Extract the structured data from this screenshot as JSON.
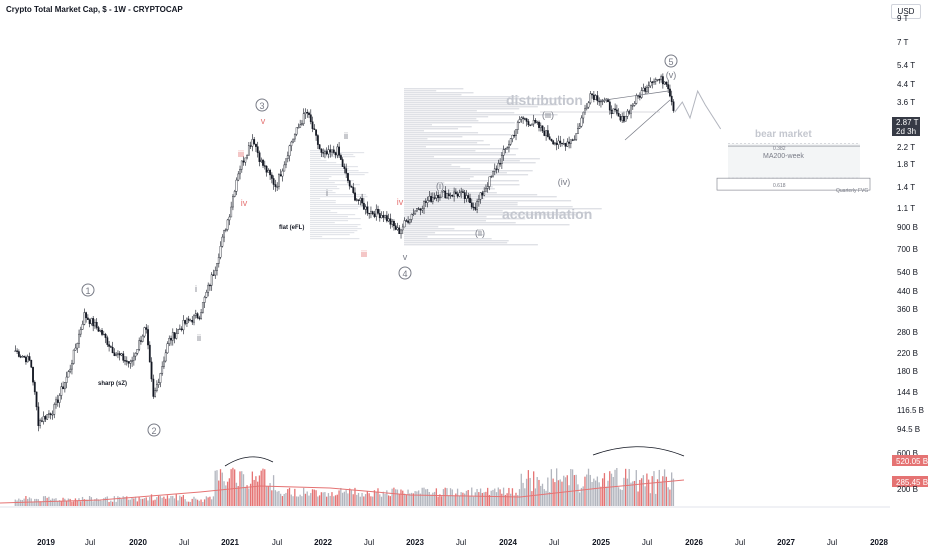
{
  "header": {
    "title": "Crypto Total Market Cap, $ - 1W - CRYPTOCAP",
    "currency": "USD"
  },
  "colors": {
    "up": "#ffffff",
    "down": "#131722",
    "wick": "#131722",
    "volume_up": "#b2b5be",
    "volume_down": "#ef9a9a",
    "volume_red": "#e57373",
    "wave_label": "#787b86",
    "sub_wave_red": "#e57373",
    "profile": "#d1d4dc",
    "grid_text": "#131722",
    "price_badge": "#363a45"
  },
  "price_axis": {
    "ticks": [
      "9 T",
      "7 T",
      "5.4 T",
      "4.4 T",
      "3.6 T",
      "2.2 T",
      "1.8 T",
      "1.4 T",
      "1.1 T",
      "900 B",
      "700 B",
      "540 B",
      "440 B",
      "360 B",
      "280 B",
      "220 B",
      "180 B",
      "144 B",
      "116.5 B",
      "94.5 B"
    ],
    "current_price": "2.87 T",
    "countdown": "2d 3h",
    "volume_ticks": [
      "600 B",
      "200 B"
    ],
    "volume_badge_1": "520.05 B",
    "volume_badge_2": "285.45 B"
  },
  "time_axis": {
    "ticks": [
      "2019",
      "Jul",
      "2020",
      "Jul",
      "2021",
      "Jul",
      "2022",
      "Jul",
      "2023",
      "Jul",
      "2024",
      "Jul",
      "2025",
      "Jul",
      "2026",
      "Jul",
      "2027",
      "Jul",
      "2028"
    ]
  },
  "annotations": {
    "wave1": "1",
    "wave2": "2",
    "wave3": "3",
    "wave4": "4",
    "wave5": "5",
    "sub_i_a": "i",
    "sub_ii_a": "ii",
    "sub_iii_a": "iii",
    "sub_iv_a": "iv",
    "sub_v_a": "v",
    "sub_i_b": "i",
    "sub_ii_b": "ii",
    "sub_iii_b": "iii",
    "sub_iv_b": "iv",
    "sub_v_b": "v",
    "p_i": "(i)",
    "p_ii": "(ii)",
    "p_iii": "(iii)",
    "p_iv": "(iv)",
    "p_v": "(v)",
    "sharp": "sharp (sZ)",
    "flat": "flat (eFL)",
    "distribution": "distribution",
    "accumulation": "accumulation",
    "bear_market": "bear market",
    "fib_382": "0.382",
    "ma200": "MA200-week",
    "fib_618": "0.618",
    "quarterly_fvg": "Quarterly FVG"
  },
  "chart_data": {
    "type": "candlestick",
    "title": "Crypto Total Market Cap, $ - 1W - CRYPTOCAP",
    "y_scale": "log",
    "y_unit": "USD",
    "ylim": [
      80000000000,
      10000000000000
    ],
    "xlim": [
      "2018-09",
      "2028-03"
    ],
    "price_path": [
      [
        "2018-09",
        225000000000.0
      ],
      [
        "2018-11",
        200000000000.0
      ],
      [
        "2018-12",
        105000000000.0
      ],
      [
        "2019-02",
        120000000000.0
      ],
      [
        "2019-04",
        180000000000.0
      ],
      [
        "2019-06",
        330000000000.0
      ],
      [
        "2019-08",
        280000000000.0
      ],
      [
        "2019-10",
        220000000000.0
      ],
      [
        "2019-12",
        195000000000.0
      ],
      [
        "2020-02",
        290000000000.0
      ],
      [
        "2020-03",
        135000000000.0
      ],
      [
        "2020-05",
        250000000000.0
      ],
      [
        "2020-07",
        300000000000.0
      ],
      [
        "2020-09",
        330000000000.0
      ],
      [
        "2020-11",
        540000000000.0
      ],
      [
        "2021-01",
        1000000000000.0
      ],
      [
        "2021-02",
        1500000000000.0
      ],
      [
        "2021-04",
        2200000000000.0
      ],
      [
        "2021-05",
        1700000000000.0
      ],
      [
        "2021-07",
        1300000000000.0
      ],
      [
        "2021-09",
        2100000000000.0
      ],
      [
        "2021-11",
        2900000000000.0
      ],
      [
        "2022-01",
        1800000000000.0
      ],
      [
        "2022-03",
        1900000000000.0
      ],
      [
        "2022-05",
        1200000000000.0
      ],
      [
        "2022-07",
        1000000000000.0
      ],
      [
        "2022-09",
        960000000000.0
      ],
      [
        "2022-11",
        800000000000.0
      ],
      [
        "2023-01",
        1000000000000.0
      ],
      [
        "2023-04",
        1200000000000.0
      ],
      [
        "2023-07",
        1200000000000.0
      ],
      [
        "2023-09",
        1050000000000.0
      ],
      [
        "2023-12",
        1650000000000.0
      ],
      [
        "2024-03",
        2700000000000.0
      ],
      [
        "2024-05",
        2500000000000.0
      ],
      [
        "2024-08",
        2000000000000.0
      ],
      [
        "2024-10",
        2200000000000.0
      ],
      [
        "2024-12",
        3500000000000.0
      ],
      [
        "2025-02",
        3200000000000.0
      ],
      [
        "2025-04",
        2600000000000.0
      ],
      [
        "2025-06",
        3300000000000.0
      ],
      [
        "2025-08",
        4100000000000.0
      ],
      [
        "2025-10",
        4000000000000.0
      ],
      [
        "2025-11",
        2870000000000.0
      ]
    ],
    "projection": [
      [
        "2025-11",
        2870000000000.0
      ],
      [
        "2025-12",
        3200000000000.0
      ],
      [
        "2026-01",
        2700000000000.0
      ],
      [
        "2026-02",
        3600000000000.0
      ],
      [
        "2026-03",
        3100000000000.0
      ],
      [
        "2026-05",
        2400000000000.0
      ]
    ],
    "levels": [
      {
        "label": "0.382",
        "value": 2050000000000.0
      },
      {
        "label": "MA200-week",
        "value": 2000000000000.0
      },
      {
        "label": "0.618",
        "value": 1420000000000.0
      },
      {
        "label": "Quarterly FVG",
        "value_top": 1420000000000.0,
        "value_bottom": 1250000000000.0
      }
    ],
    "volume_series": {
      "ylim": [
        0,
        700000000000.0
      ],
      "last": 520050000000.0,
      "ma": 285450000000.0
    }
  }
}
